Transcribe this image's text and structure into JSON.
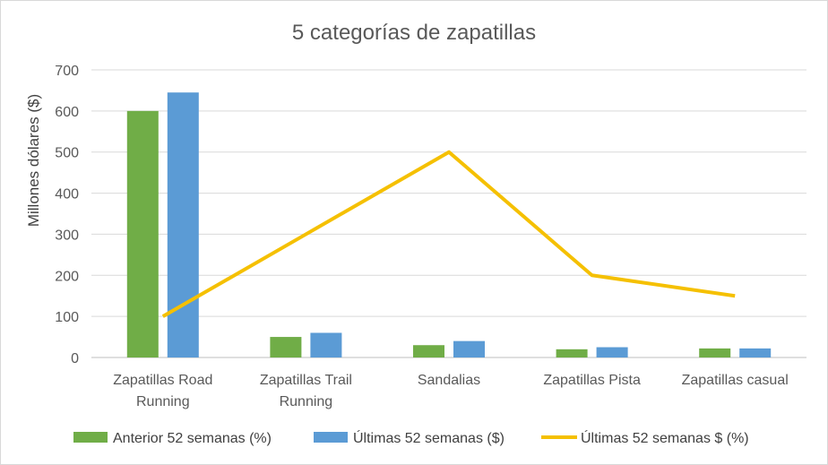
{
  "chart_data": {
    "type": "bar",
    "title": "5 categorías de zapatillas",
    "ylabel": "Millones dólares ($)",
    "xlabel": "",
    "ylim": [
      0,
      700
    ],
    "yticks": [
      0,
      100,
      200,
      300,
      400,
      500,
      600,
      700
    ],
    "grid": true,
    "legend_position": "bottom",
    "categories": [
      [
        "Zapatillas Road",
        "Running"
      ],
      [
        "Zapatillas Trail",
        "Running"
      ],
      [
        "Sandalias"
      ],
      [
        "Zapatillas Pista"
      ],
      [
        "Zapatillas casual"
      ]
    ],
    "series": [
      {
        "name": "Anterior 52 semanas  (%)",
        "type": "bar",
        "color": "#70ad47",
        "values": [
          600,
          50,
          30,
          20,
          22
        ]
      },
      {
        "name": "Últimas 52 semanas ($)",
        "type": "bar",
        "color": "#5b9bd5",
        "values": [
          645,
          60,
          40,
          25,
          22
        ]
      },
      {
        "name": "Últimas 52 semanas $ (%)",
        "type": "line",
        "color": "#f5c000",
        "values": [
          100,
          300,
          500,
          200,
          150
        ]
      }
    ]
  }
}
